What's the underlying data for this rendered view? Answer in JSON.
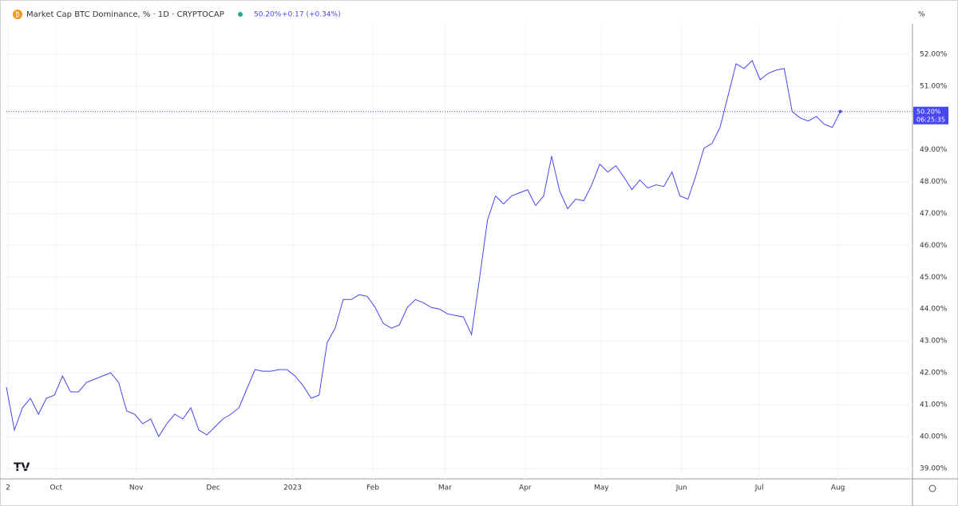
{
  "chart_data": {
    "type": "line",
    "title": "Market Cap BTC Dominance, % · 1D · CRYPTOCAP",
    "last_value_label": "50.20%",
    "change_label": "+0.17 (+0.34%)",
    "axis_unit": "%",
    "price_tag": "50.20%",
    "countdown": "06:25:35",
    "color": "#4646f2",
    "grid": true,
    "values": [
      41.55,
      40.2,
      40.9,
      41.2,
      40.7,
      41.2,
      41.3,
      41.9,
      41.4,
      41.4,
      41.7,
      41.8,
      41.9,
      42.0,
      41.7,
      40.8,
      40.7,
      40.4,
      40.55,
      40.0,
      40.4,
      40.7,
      40.55,
      40.9,
      40.2,
      40.05,
      40.3,
      40.55,
      40.7,
      40.9,
      41.5,
      42.1,
      42.05,
      42.05,
      42.1,
      42.1,
      41.9,
      41.6,
      41.2,
      41.3,
      42.95,
      43.4,
      44.3,
      44.3,
      44.45,
      44.4,
      44.05,
      43.55,
      43.4,
      43.5,
      44.05,
      44.3,
      44.2,
      44.05,
      44.0,
      43.85,
      43.8,
      43.75,
      43.2,
      44.95,
      46.8,
      47.55,
      47.3,
      47.55,
      47.65,
      47.75,
      47.25,
      47.55,
      48.8,
      47.7,
      47.15,
      47.45,
      47.4,
      47.9,
      48.55,
      48.3,
      48.5,
      48.15,
      47.75,
      48.05,
      47.8,
      47.9,
      47.85,
      48.3,
      47.55,
      47.45,
      48.2,
      49.05,
      49.2,
      49.7,
      50.7,
      51.7,
      51.55,
      51.8,
      51.2,
      51.4,
      51.5,
      51.55,
      50.2,
      50.0,
      49.9,
      50.05,
      49.8,
      49.7,
      50.2
    ],
    "xlim": [
      0,
      113
    ],
    "xticks": [
      {
        "value": 0.2,
        "label": "2"
      },
      {
        "value": 6.2,
        "label": "Oct"
      },
      {
        "value": 16.2,
        "label": "Nov"
      },
      {
        "value": 25.8,
        "label": "Dec"
      },
      {
        "value": 35.7,
        "label": "2023"
      },
      {
        "value": 45.7,
        "label": "Feb"
      },
      {
        "value": 54.7,
        "label": "Mar"
      },
      {
        "value": 64.7,
        "label": "Apr"
      },
      {
        "value": 74.2,
        "label": "May"
      },
      {
        "value": 84.2,
        "label": "Jun"
      },
      {
        "value": 93.9,
        "label": "Jul"
      },
      {
        "value": 103.7,
        "label": "Aug"
      }
    ],
    "ylim": [
      38.67,
      52.95
    ],
    "yticks": [
      {
        "value": 39,
        "label": "39.00%"
      },
      {
        "value": 40,
        "label": "40.00%"
      },
      {
        "value": 41,
        "label": "41.00%"
      },
      {
        "value": 42,
        "label": "42.00%"
      },
      {
        "value": 43,
        "label": "43.00%"
      },
      {
        "value": 44,
        "label": "44.00%"
      },
      {
        "value": 45,
        "label": "45.00%"
      },
      {
        "value": 46,
        "label": "46.00%"
      },
      {
        "value": 47,
        "label": "47.00%"
      },
      {
        "value": 48,
        "label": "48.00%"
      },
      {
        "value": 49,
        "label": "49.00%"
      },
      {
        "value": 50,
        "label": "50.00%"
      },
      {
        "value": 51,
        "label": "51.00%"
      },
      {
        "value": 52,
        "label": "52.00%"
      }
    ]
  }
}
